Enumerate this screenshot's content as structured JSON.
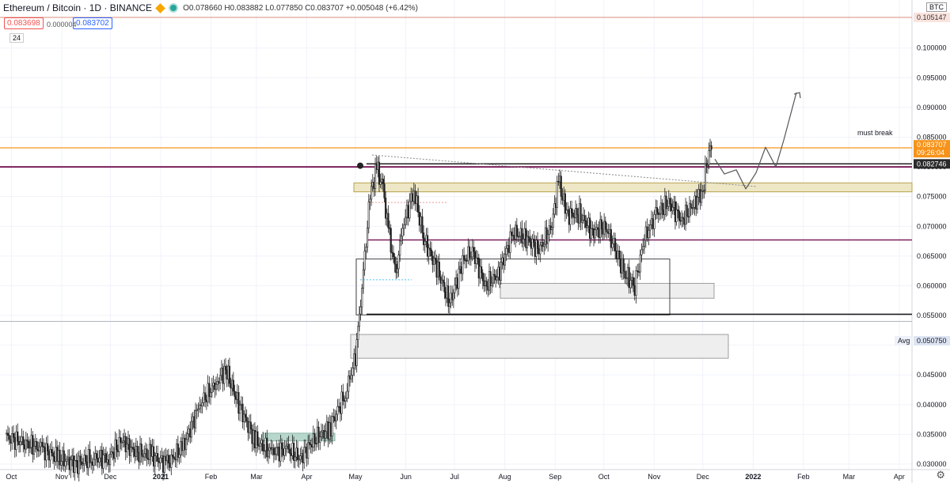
{
  "header": {
    "symbol": "Ethereum / Bitcoin · 1D · BINANCE",
    "ohlc": "O0.078660 H0.083882 L0.077850 C0.083707 +0.005048 (+6.42%)",
    "sell_price": "0.083698",
    "spread": "0.000004",
    "buy_price": "0.083702",
    "volume_label": "24",
    "currency": "BTC"
  },
  "annotation_text": "must break",
  "avg_label": "Avg",
  "countdown": "09:26:04",
  "colors": {
    "up": "#26a69a",
    "down": "#ef5350",
    "orange_line": "#f7931a",
    "purple_line": "#7b1f5c",
    "zone_yellow": "#eee7c6",
    "zone_gray": "#eeeeee",
    "zone_green": "#b7d7cc"
  },
  "chart_data": {
    "type": "candlestick",
    "title": "Ethereum / Bitcoin · 1D · BINANCE",
    "xlabel": "",
    "ylabel": "",
    "x_ticks": [
      "Oct",
      "Nov",
      "Dec",
      "2021",
      "Feb",
      "Mar",
      "Apr",
      "May",
      "Jun",
      "Jul",
      "Aug",
      "Sep",
      "Oct",
      "Nov",
      "Dec",
      "2022",
      "Feb",
      "Mar",
      "Apr"
    ],
    "y_ticks": [
      "0.100000",
      "0.095000",
      "0.090000",
      "0.085000",
      "0.080000",
      "0.075000",
      "0.070000",
      "0.065000",
      "0.060000",
      "0.055000",
      "0.045000",
      "0.040000",
      "0.035000",
      "0.030000"
    ],
    "ylim": [
      0.0295,
      0.1075
    ],
    "grid": true,
    "price_labels": [
      {
        "value": "0.105147",
        "y": 0.105147,
        "style": "ghost"
      },
      {
        "value": "0.083707",
        "y": 0.083707,
        "style": "orange"
      },
      {
        "value": "0.082746",
        "y": 0.0805,
        "style": "dark"
      },
      {
        "value": "0.050750",
        "y": 0.05075,
        "style": "avg"
      }
    ],
    "close_series": [
      {
        "date": "2020-09-28",
        "close": 0.0345
      },
      {
        "date": "2020-10-10",
        "close": 0.0335
      },
      {
        "date": "2020-10-20",
        "close": 0.0325
      },
      {
        "date": "2020-10-30",
        "close": 0.031
      },
      {
        "date": "2020-11-10",
        "close": 0.03
      },
      {
        "date": "2020-11-20",
        "close": 0.031
      },
      {
        "date": "2020-11-30",
        "close": 0.031
      },
      {
        "date": "2020-12-08",
        "close": 0.034
      },
      {
        "date": "2020-12-16",
        "close": 0.032
      },
      {
        "date": "2020-12-26",
        "close": 0.0315
      },
      {
        "date": "2021-01-05",
        "close": 0.03
      },
      {
        "date": "2021-01-15",
        "close": 0.033
      },
      {
        "date": "2021-01-25",
        "close": 0.04
      },
      {
        "date": "2021-02-05",
        "close": 0.044
      },
      {
        "date": "2021-02-10",
        "close": 0.046
      },
      {
        "date": "2021-02-18",
        "close": 0.04
      },
      {
        "date": "2021-02-28",
        "close": 0.034
      },
      {
        "date": "2021-03-10",
        "close": 0.032
      },
      {
        "date": "2021-03-20",
        "close": 0.0325
      },
      {
        "date": "2021-03-28",
        "close": 0.031
      },
      {
        "date": "2021-04-05",
        "close": 0.034
      },
      {
        "date": "2021-04-15",
        "close": 0.036
      },
      {
        "date": "2021-04-25",
        "close": 0.042
      },
      {
        "date": "2021-05-01",
        "close": 0.048
      },
      {
        "date": "2021-05-05",
        "close": 0.06
      },
      {
        "date": "2021-05-10",
        "close": 0.075
      },
      {
        "date": "2021-05-14",
        "close": 0.08
      },
      {
        "date": "2021-05-18",
        "close": 0.076
      },
      {
        "date": "2021-05-22",
        "close": 0.068
      },
      {
        "date": "2021-05-26",
        "close": 0.062
      },
      {
        "date": "2021-05-30",
        "close": 0.07
      },
      {
        "date": "2021-06-06",
        "close": 0.076
      },
      {
        "date": "2021-06-12",
        "close": 0.068
      },
      {
        "date": "2021-06-20",
        "close": 0.063
      },
      {
        "date": "2021-06-28",
        "close": 0.057
      },
      {
        "date": "2021-07-06",
        "close": 0.064
      },
      {
        "date": "2021-07-12",
        "close": 0.066
      },
      {
        "date": "2021-07-20",
        "close": 0.06
      },
      {
        "date": "2021-07-28",
        "close": 0.062
      },
      {
        "date": "2021-08-06",
        "close": 0.069
      },
      {
        "date": "2021-08-14",
        "close": 0.068
      },
      {
        "date": "2021-08-22",
        "close": 0.066
      },
      {
        "date": "2021-08-30",
        "close": 0.07
      },
      {
        "date": "2021-09-03",
        "close": 0.078
      },
      {
        "date": "2021-09-08",
        "close": 0.072
      },
      {
        "date": "2021-09-16",
        "close": 0.072
      },
      {
        "date": "2021-09-24",
        "close": 0.069
      },
      {
        "date": "2021-10-02",
        "close": 0.07
      },
      {
        "date": "2021-10-08",
        "close": 0.066
      },
      {
        "date": "2021-10-14",
        "close": 0.062
      },
      {
        "date": "2021-10-20",
        "close": 0.06
      },
      {
        "date": "2021-10-26",
        "close": 0.068
      },
      {
        "date": "2021-11-02",
        "close": 0.072
      },
      {
        "date": "2021-11-10",
        "close": 0.074
      },
      {
        "date": "2021-11-18",
        "close": 0.071
      },
      {
        "date": "2021-11-26",
        "close": 0.074
      },
      {
        "date": "2021-12-01",
        "close": 0.076
      },
      {
        "date": "2021-12-04",
        "close": 0.082
      },
      {
        "date": "2021-12-07",
        "close": 0.0837
      }
    ]
  }
}
